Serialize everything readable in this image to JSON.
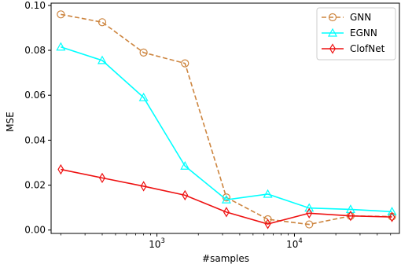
{
  "chart_data": {
    "type": "line",
    "xlabel": "#samples",
    "ylabel": "MSE",
    "xscale": "log",
    "xlim": [
      170,
      58000
    ],
    "ylim": [
      -0.0015,
      0.101
    ],
    "x_ticks": [
      {
        "value": 1000,
        "base": "10",
        "exp": "3"
      },
      {
        "value": 10000,
        "base": "10",
        "exp": "4"
      }
    ],
    "y_ticks": [
      {
        "value": 0.0,
        "label": "0.00"
      },
      {
        "value": 0.02,
        "label": "0.02"
      },
      {
        "value": 0.04,
        "label": "0.04"
      },
      {
        "value": 0.06,
        "label": "0.06"
      },
      {
        "value": 0.08,
        "label": "0.08"
      },
      {
        "value": 0.1,
        "label": "0.10"
      }
    ],
    "grid": false,
    "legend_position": "top-right",
    "x": [
      200,
      400,
      800,
      1600,
      3200,
      6400,
      12800,
      25600,
      51200
    ],
    "series": [
      {
        "name": "GNN",
        "color": "#cd853f",
        "dash": "dashed",
        "marker": "circle",
        "values": [
          0.096,
          0.0925,
          0.079,
          0.0742,
          0.0145,
          0.0048,
          0.0025,
          0.0063,
          0.006
        ]
      },
      {
        "name": "EGNN",
        "color": "#00ffff",
        "dash": "solid",
        "marker": "triangle",
        "values": [
          0.0815,
          0.0755,
          0.059,
          0.0285,
          0.0135,
          0.016,
          0.0098,
          0.0092,
          0.0082
        ]
      },
      {
        "name": "ClofNet",
        "color": "#ee1111",
        "dash": "solid",
        "marker": "diamond",
        "values": [
          0.027,
          0.0232,
          0.0195,
          0.0155,
          0.008,
          0.0027,
          0.0075,
          0.0063,
          0.0058
        ]
      }
    ]
  }
}
